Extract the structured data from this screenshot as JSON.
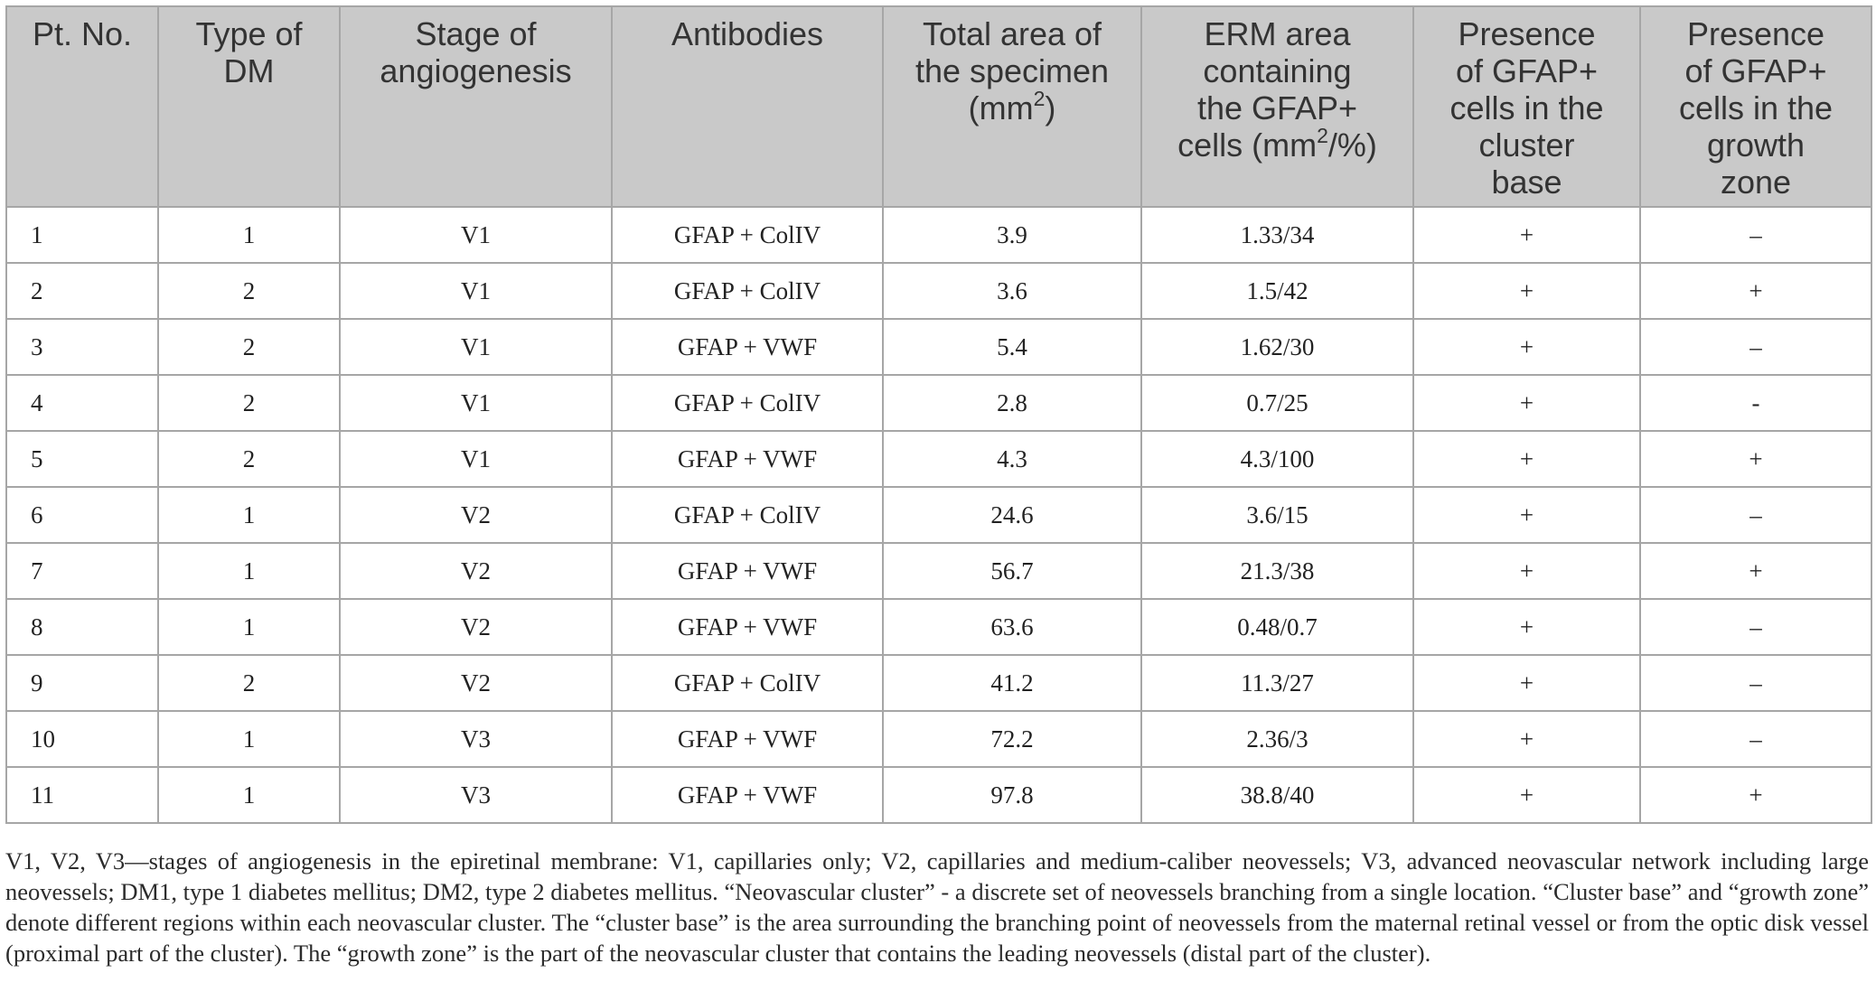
{
  "table": {
    "headers": [
      {
        "key": "pt",
        "lines": [
          "Pt. No."
        ]
      },
      {
        "key": "type",
        "lines": [
          "Type of",
          "DM"
        ]
      },
      {
        "key": "stage",
        "lines": [
          "Stage of",
          "angiogenesis"
        ]
      },
      {
        "key": "antibodies",
        "lines": [
          "Antibodies"
        ]
      },
      {
        "key": "total",
        "lines": [
          "Total area of",
          "the specimen",
          "(mm2)"
        ]
      },
      {
        "key": "erm",
        "lines": [
          "ERM area",
          "containing",
          "the GFAP+",
          "cells (mm2/%)"
        ]
      },
      {
        "key": "base",
        "lines": [
          "Presence",
          "of GFAP+",
          "cells in the",
          "cluster",
          "base"
        ]
      },
      {
        "key": "growth",
        "lines": [
          "Presence",
          "of GFAP+",
          "cells in the",
          "growth",
          "zone"
        ]
      }
    ],
    "rows": [
      [
        "1",
        "1",
        "V1",
        "GFAP + ColIV",
        "3.9",
        "1.33/34",
        "+",
        "–"
      ],
      [
        "2",
        "2",
        "V1",
        "GFAP + ColIV",
        "3.6",
        "1.5/42",
        "+",
        "+"
      ],
      [
        "3",
        "2",
        "V1",
        "GFAP + VWF",
        "5.4",
        "1.62/30",
        "+",
        "–"
      ],
      [
        "4",
        "2",
        "V1",
        "GFAP + ColIV",
        "2.8",
        "0.7/25",
        "+",
        "-"
      ],
      [
        "5",
        "2",
        "V1",
        "GFAP + VWF",
        "4.3",
        "4.3/100",
        "+",
        "+"
      ],
      [
        "6",
        "1",
        "V2",
        "GFAP + ColIV",
        "24.6",
        "3.6/15",
        "+",
        "–"
      ],
      [
        "7",
        "1",
        "V2",
        "GFAP + VWF",
        "56.7",
        "21.3/38",
        "+",
        "+"
      ],
      [
        "8",
        "1",
        "V2",
        "GFAP + VWF",
        "63.6",
        "0.48/0.7",
        "+",
        "–"
      ],
      [
        "9",
        "2",
        "V2",
        "GFAP + ColIV",
        "41.2",
        "11.3/27",
        "+",
        "–"
      ],
      [
        "10",
        "1",
        "V3",
        "GFAP + VWF",
        "72.2",
        "2.36/3",
        "+",
        "–"
      ],
      [
        "11",
        "1",
        "V3",
        "GFAP + VWF",
        "97.8",
        "38.8/40",
        "+",
        "+"
      ]
    ]
  },
  "footnote": "V1, V2, V3—stages of angiogenesis in the epiretinal membrane: V1, capillaries only; V2, capillaries and medium-caliber neovessels; V3, advanced neovascular network including large neovessels; DM1, type 1 diabetes mellitus; DM2, type 2 diabetes mellitus. “Neovascular cluster” - a discrete set of neovessels branching from a single location. “Cluster base” and “growth zone” denote different regions within each neovascular cluster. The “cluster base” is the area surrounding the branching point of neovessels from the maternal retinal vessel or from the optic disk vessel (proximal part of the cluster). The “growth zone” is the part of the neovascular cluster that contains the leading neovessels (distal part of the cluster)."
}
